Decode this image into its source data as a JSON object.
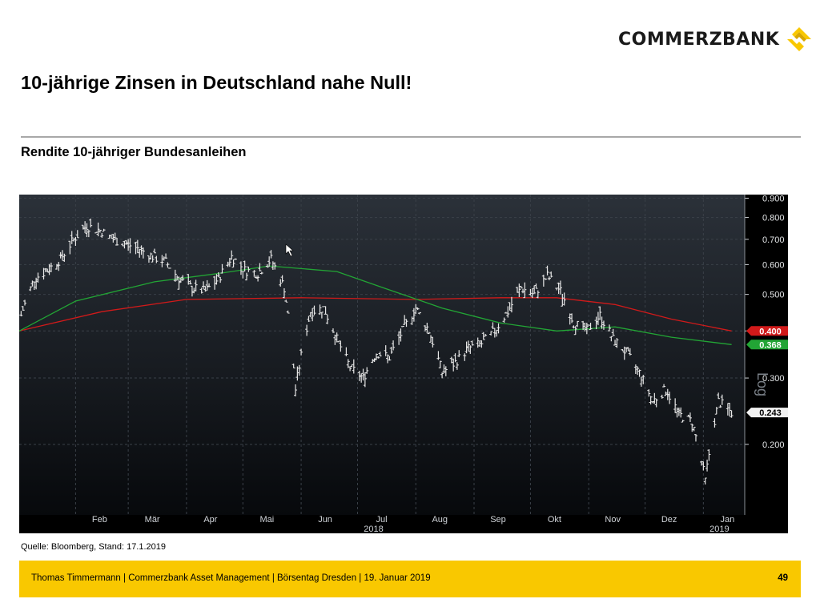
{
  "brand": {
    "name": "COMMERZBANK",
    "mark_color": "#f9c800"
  },
  "title": "10-jährige Zinsen in Deutschland nahe Null!",
  "subtitle": "Rendite 10-jähriger Bundesanleihen",
  "source": "Quelle: Bloomberg, Stand: 17.1.2019",
  "footer": {
    "text": "Thomas Timmermann | Commerzbank Asset Management | Börsentag Dresden | 19. Januar 2019",
    "page": "49"
  },
  "chart_data": {
    "type": "bar",
    "style": "ohlc",
    "background": "#0b0f14",
    "grid": true,
    "scale_label": "Log",
    "ylim": [
      0.13,
      0.92
    ],
    "y_ticks": [
      "0.900",
      "0.800",
      "0.700",
      "0.600",
      "0.500",
      "0.400",
      "0.300",
      "0.200"
    ],
    "x_ticks": [
      {
        "date": "2018-02-01",
        "label": "Feb"
      },
      {
        "date": "2018-03-01",
        "label": "Mär"
      },
      {
        "date": "2018-04-01",
        "label": "Apr"
      },
      {
        "date": "2018-05-01",
        "label": "Mai"
      },
      {
        "date": "2018-06-01",
        "label": "Jun"
      },
      {
        "date": "2018-07-01",
        "label": "Jul"
      },
      {
        "date": "2018-08-01",
        "label": "Aug"
      },
      {
        "date": "2018-09-01",
        "label": "Sep"
      },
      {
        "date": "2018-10-01",
        "label": "Okt"
      },
      {
        "date": "2018-11-01",
        "label": "Nov"
      },
      {
        "date": "2018-12-01",
        "label": "Dez"
      },
      {
        "date": "2019-01-01",
        "label": "Jan"
      }
    ],
    "year_labels": [
      {
        "date": "2018-07-01",
        "label": "2018"
      },
      {
        "date": "2019-01-01",
        "label": "2019"
      }
    ],
    "x_range": [
      "2018-01-02",
      "2019-01-23"
    ],
    "price_color": "#e8e8e8",
    "price": [
      [
        "2018-01-03",
        0.44
      ],
      [
        "2018-01-10",
        0.55
      ],
      [
        "2018-01-17",
        0.58
      ],
      [
        "2018-01-24",
        0.62
      ],
      [
        "2018-01-31",
        0.7
      ],
      [
        "2018-02-07",
        0.76
      ],
      [
        "2018-02-14",
        0.74
      ],
      [
        "2018-02-21",
        0.7
      ],
      [
        "2018-02-28",
        0.68
      ],
      [
        "2018-03-07",
        0.66
      ],
      [
        "2018-03-14",
        0.63
      ],
      [
        "2018-03-21",
        0.61
      ],
      [
        "2018-03-28",
        0.55
      ],
      [
        "2018-04-04",
        0.52
      ],
      [
        "2018-04-11",
        0.51
      ],
      [
        "2018-04-18",
        0.55
      ],
      [
        "2018-04-25",
        0.63
      ],
      [
        "2018-05-02",
        0.58
      ],
      [
        "2018-05-09",
        0.57
      ],
      [
        "2018-05-16",
        0.62
      ],
      [
        "2018-05-23",
        0.52
      ],
      [
        "2018-05-29",
        0.28
      ],
      [
        "2018-06-06",
        0.45
      ],
      [
        "2018-06-13",
        0.46
      ],
      [
        "2018-06-20",
        0.38
      ],
      [
        "2018-06-27",
        0.32
      ],
      [
        "2018-07-04",
        0.3
      ],
      [
        "2018-07-11",
        0.35
      ],
      [
        "2018-07-18",
        0.34
      ],
      [
        "2018-07-25",
        0.4
      ],
      [
        "2018-08-01",
        0.46
      ],
      [
        "2018-08-08",
        0.4
      ],
      [
        "2018-08-15",
        0.31
      ],
      [
        "2018-08-22",
        0.33
      ],
      [
        "2018-08-29",
        0.36
      ],
      [
        "2018-09-05",
        0.37
      ],
      [
        "2018-09-12",
        0.4
      ],
      [
        "2018-09-19",
        0.45
      ],
      [
        "2018-09-26",
        0.52
      ],
      [
        "2018-10-03",
        0.5
      ],
      [
        "2018-10-10",
        0.56
      ],
      [
        "2018-10-17",
        0.51
      ],
      [
        "2018-10-24",
        0.42
      ],
      [
        "2018-10-31",
        0.4
      ],
      [
        "2018-11-07",
        0.44
      ],
      [
        "2018-11-14",
        0.38
      ],
      [
        "2018-11-21",
        0.35
      ],
      [
        "2018-11-28",
        0.31
      ],
      [
        "2018-12-05",
        0.26
      ],
      [
        "2018-12-12",
        0.28
      ],
      [
        "2018-12-19",
        0.24
      ],
      [
        "2018-12-26",
        0.23
      ],
      [
        "2019-01-02",
        0.16
      ],
      [
        "2019-01-09",
        0.26
      ],
      [
        "2019-01-16",
        0.243
      ]
    ],
    "series": [
      {
        "color": "#d11a1a",
        "last_value": "0.400",
        "values": [
          [
            "2018-01-02",
            0.4
          ],
          [
            "2018-02-15",
            0.45
          ],
          [
            "2018-04-01",
            0.485
          ],
          [
            "2018-06-01",
            0.49
          ],
          [
            "2018-08-01",
            0.485
          ],
          [
            "2018-09-15",
            0.49
          ],
          [
            "2018-10-15",
            0.49
          ],
          [
            "2018-11-15",
            0.47
          ],
          [
            "2018-12-15",
            0.43
          ],
          [
            "2019-01-16",
            0.4
          ]
        ]
      },
      {
        "color": "#22a535",
        "last_value": "0.368",
        "values": [
          [
            "2018-01-02",
            0.4
          ],
          [
            "2018-02-01",
            0.48
          ],
          [
            "2018-03-15",
            0.54
          ],
          [
            "2018-04-20",
            0.57
          ],
          [
            "2018-05-15",
            0.595
          ],
          [
            "2018-06-20",
            0.575
          ],
          [
            "2018-07-15",
            0.52
          ],
          [
            "2018-08-15",
            0.46
          ],
          [
            "2018-09-15",
            0.42
          ],
          [
            "2018-10-15",
            0.4
          ],
          [
            "2018-11-15",
            0.41
          ],
          [
            "2018-12-15",
            0.385
          ],
          [
            "2019-01-16",
            0.368
          ]
        ]
      }
    ],
    "last_price_label": "0.243"
  }
}
